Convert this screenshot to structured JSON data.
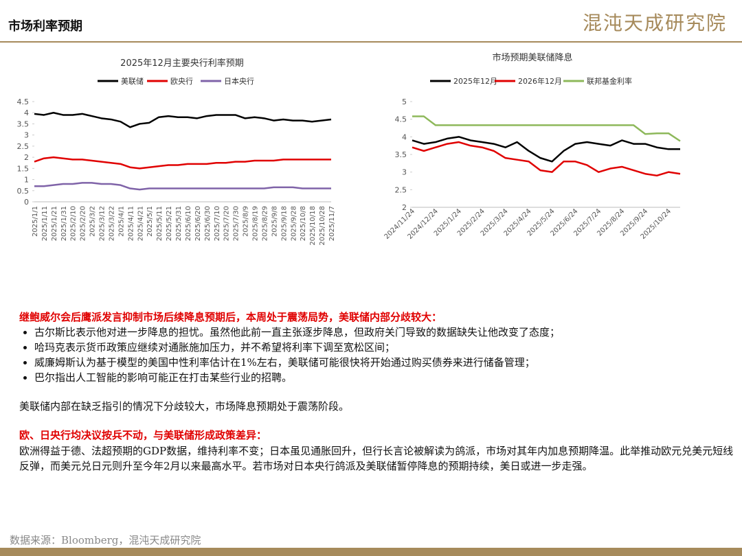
{
  "header": {
    "title": "市场利率预期",
    "logo": "混沌天成研究院"
  },
  "chart_data": [
    {
      "type": "line",
      "title": "2025年12月主要央行利率预期",
      "categories": [
        "2025/1/1",
        "2025/1/11",
        "2025/1/21",
        "2025/1/31",
        "2025/2/10",
        "2025/2/20",
        "2025/3/2",
        "2025/3/12",
        "2025/3/22",
        "2025/4/1",
        "2025/4/11",
        "2025/4/21",
        "2025/5/1",
        "2025/5/11",
        "2025/5/21",
        "2025/5/31",
        "2025/6/10",
        "2025/6/20",
        "2025/6/30",
        "2025/7/10",
        "2025/7/20",
        "2025/7/30",
        "2025/8/9",
        "2025/8/19",
        "2025/8/29",
        "2025/9/8",
        "2025/9/18",
        "2025/9/28",
        "2025/10/8",
        "2025/10/18",
        "2025/10/28",
        "2025/11/7"
      ],
      "series": [
        {
          "name": "美联储",
          "color": "#000000",
          "values": [
            3.95,
            3.9,
            4.0,
            3.9,
            3.9,
            3.95,
            3.85,
            3.75,
            3.7,
            3.6,
            3.35,
            3.5,
            3.55,
            3.8,
            3.85,
            3.8,
            3.8,
            3.75,
            3.85,
            3.9,
            3.9,
            3.9,
            3.75,
            3.8,
            3.75,
            3.65,
            3.7,
            3.65,
            3.65,
            3.6,
            3.65,
            3.7
          ]
        },
        {
          "name": "欧央行",
          "color": "#e00000",
          "values": [
            1.8,
            1.95,
            2.0,
            1.95,
            1.9,
            1.9,
            1.85,
            1.8,
            1.75,
            1.7,
            1.55,
            1.5,
            1.55,
            1.6,
            1.65,
            1.65,
            1.7,
            1.7,
            1.7,
            1.75,
            1.75,
            1.8,
            1.8,
            1.85,
            1.85,
            1.85,
            1.9,
            1.9,
            1.9,
            1.9,
            1.9,
            1.9
          ]
        },
        {
          "name": "日本央行",
          "color": "#7f63a8",
          "values": [
            0.7,
            0.7,
            0.75,
            0.8,
            0.8,
            0.85,
            0.85,
            0.8,
            0.8,
            0.75,
            0.6,
            0.55,
            0.6,
            0.6,
            0.6,
            0.6,
            0.6,
            0.6,
            0.6,
            0.6,
            0.6,
            0.6,
            0.6,
            0.6,
            0.6,
            0.65,
            0.65,
            0.65,
            0.6,
            0.6,
            0.6,
            0.6
          ]
        }
      ],
      "ylim": [
        0,
        4.5
      ],
      "yticks": [
        0,
        0.5,
        1,
        1.5,
        2,
        2.5,
        3,
        3.5,
        4,
        4.5
      ],
      "grid": false,
      "legend": "top"
    },
    {
      "type": "line",
      "title": "市场预期美联储降息",
      "categories": [
        "2024/11/24",
        null,
        "2024/12/24",
        null,
        "2025/1/24",
        null,
        "2025/2/24",
        null,
        "2025/3/24",
        null,
        "2025/4/24",
        null,
        "2025/5/24",
        null,
        "2025/6/24",
        null,
        "2025/7/24",
        null,
        "2025/8/24",
        null,
        "2025/9/24",
        null,
        "2025/10/24",
        null
      ],
      "series": [
        {
          "name": "2025年12月",
          "color": "#000000",
          "values": [
            3.9,
            3.8,
            3.85,
            3.95,
            4.0,
            3.9,
            3.85,
            3.8,
            3.7,
            3.85,
            3.6,
            3.4,
            3.3,
            3.6,
            3.8,
            3.85,
            3.8,
            3.75,
            3.9,
            3.8,
            3.8,
            3.7,
            3.65,
            3.65
          ]
        },
        {
          "name": "2026年12月",
          "color": "#e00000",
          "values": [
            3.7,
            3.6,
            3.7,
            3.8,
            3.85,
            3.75,
            3.7,
            3.6,
            3.4,
            3.35,
            3.3,
            3.05,
            3.0,
            3.3,
            3.3,
            3.2,
            3.0,
            3.1,
            3.15,
            3.05,
            2.95,
            2.9,
            3.0,
            2.95
          ]
        },
        {
          "name": "联邦基金利率",
          "color": "#8db85a",
          "values": [
            4.58,
            4.58,
            4.33,
            4.33,
            4.33,
            4.33,
            4.33,
            4.33,
            4.33,
            4.33,
            4.33,
            4.33,
            4.33,
            4.33,
            4.33,
            4.33,
            4.33,
            4.33,
            4.33,
            4.33,
            4.08,
            4.1,
            4.1,
            3.88
          ]
        }
      ],
      "ylim": [
        2,
        5
      ],
      "yticks": [
        2,
        2.5,
        3,
        3.5,
        4,
        4.5,
        5
      ],
      "grid": false,
      "legend": "top"
    }
  ],
  "body": {
    "heading1": "继鲍威尔会后鹰派发言抑制市场后续降息预期后，本周处于震荡局势，美联储内部分歧较大：",
    "bullets": [
      "古尔斯比表示他对进一步降息的担忧。虽然他此前一直主张逐步降息，但政府关门导致的数据缺失让他改变了态度；",
      "哈玛克表示货币政策应继续对通胀施加压力，并不希望将利率下调至宽松区间；",
      "威廉姆斯认为基于模型的美国中性利率估计在1%左右，美联储可能很快将开始通过购买债券来进行储备管理；",
      "巴尔指出人工智能的影响可能正在打击某些行业的招聘。"
    ],
    "summary": "美联储内部在缺乏指引的情况下分歧较大，市场降息预期处于震荡阶段。",
    "heading2": "欧、日央行均决议按兵不动，与美联储形成政策差异：",
    "paragraph": "欧洲得益于德、法超预期的GDP数据，维持利率不变；日本虽见通胀回升，但行长言论被解读为鸽派，市场对其年内加息预期降温。此举推动欧元兑美元短线反弹，而美元兑日元则升至今年2月以来最高水平。若市场对日本央行鸽派及美联储暂停降息的预期持续，美日或进一步走强。"
  },
  "footer": {
    "source": "数据来源：Bloomberg，混沌天成研究院"
  }
}
